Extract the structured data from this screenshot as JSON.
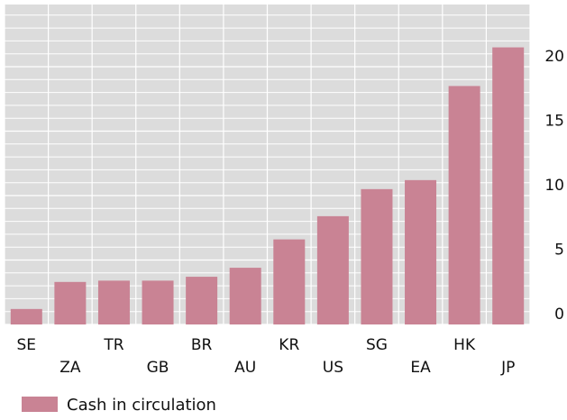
{
  "colors": {
    "bar": "#c98394",
    "plot_bg": "#dcdcdc",
    "grid": "#ffffff",
    "text": "#111111"
  },
  "chart_data": {
    "type": "bar",
    "categories": [
      "SE",
      "ZA",
      "TR",
      "GB",
      "BR",
      "AU",
      "KR",
      "US",
      "SG",
      "EA",
      "HK",
      "JP"
    ],
    "values": [
      1.2,
      3.3,
      3.4,
      3.4,
      3.7,
      4.4,
      6.6,
      8.4,
      10.5,
      11.2,
      18.5,
      21.5
    ],
    "series": [
      {
        "name": "Cash in circulation"
      }
    ],
    "yticks": [
      "0",
      "5",
      "10",
      "15",
      "20"
    ],
    "ylim": [
      0,
      23
    ],
    "y_axis_side": "right",
    "grid": true,
    "legend_position": "bottom-left"
  }
}
